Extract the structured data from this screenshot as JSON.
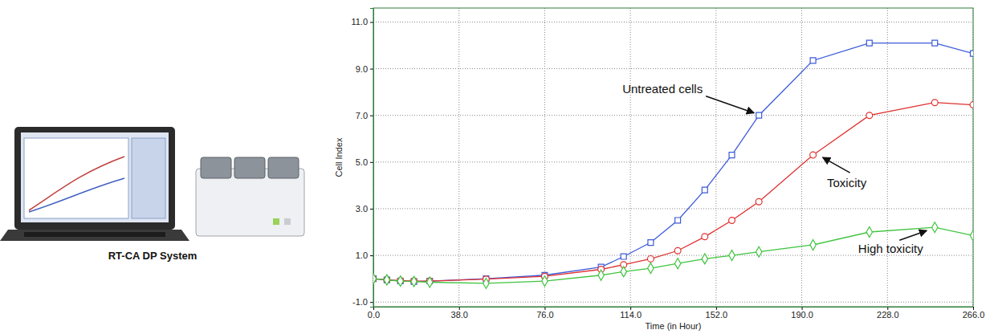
{
  "figure": {
    "caption": "RT-CA DP System"
  },
  "chart_data": {
    "type": "line",
    "x_label": "Time (in Hour)",
    "y_label": "Cell Index",
    "grid": true,
    "xlim": [
      0,
      266
    ],
    "ylim": [
      -1.2,
      11.6
    ],
    "xticks": [
      {
        "value": 0,
        "label": "0.0"
      },
      {
        "value": 38,
        "label": "38.0"
      },
      {
        "value": 76,
        "label": "76.0"
      },
      {
        "value": 114,
        "label": "114.0"
      },
      {
        "value": 152,
        "label": "152.0"
      },
      {
        "value": 190,
        "label": "190.0"
      },
      {
        "value": 228,
        "label": "228.0"
      },
      {
        "value": 266,
        "label": "266.0"
      }
    ],
    "yticks": [
      {
        "value": -1,
        "label": "-1.0"
      },
      {
        "value": 1,
        "label": "1.0"
      },
      {
        "value": 3,
        "label": "3.0"
      },
      {
        "value": 5,
        "label": "5.0"
      },
      {
        "value": 7,
        "label": "7.0"
      },
      {
        "value": 9,
        "label": "9.0"
      },
      {
        "value": 11,
        "label": "11.0"
      }
    ],
    "x": [
      0,
      6,
      12,
      18,
      25,
      50,
      76,
      101,
      111,
      123,
      135,
      147,
      159,
      171,
      195,
      220,
      249,
      266
    ],
    "series": [
      {
        "name": "Untreated cells",
        "color": "#3d5bd9",
        "marker": "square",
        "line_style": "solid",
        "values": [
          0,
          -0.05,
          -0.1,
          -0.12,
          -0.1,
          0.0,
          0.15,
          0.5,
          0.95,
          1.55,
          2.5,
          3.8,
          5.3,
          7.0,
          9.35,
          10.1,
          10.1,
          9.65
        ]
      },
      {
        "name": "Toxicity",
        "color": "#e03030",
        "marker": "circle",
        "line_style": "solid",
        "values": [
          0,
          -0.05,
          -0.08,
          -0.1,
          -0.1,
          -0.02,
          0.1,
          0.4,
          0.6,
          0.85,
          1.2,
          1.8,
          2.5,
          3.3,
          5.3,
          7.0,
          7.55,
          7.45
        ]
      },
      {
        "name": "High toxicity",
        "color": "#3fc43f",
        "marker": "diamond",
        "line_style": "solid",
        "values": [
          0,
          -0.05,
          -0.1,
          -0.12,
          -0.15,
          -0.2,
          -0.1,
          0.15,
          0.3,
          0.45,
          0.65,
          0.85,
          1.0,
          1.15,
          1.45,
          2.0,
          2.2,
          1.85
        ]
      }
    ]
  }
}
